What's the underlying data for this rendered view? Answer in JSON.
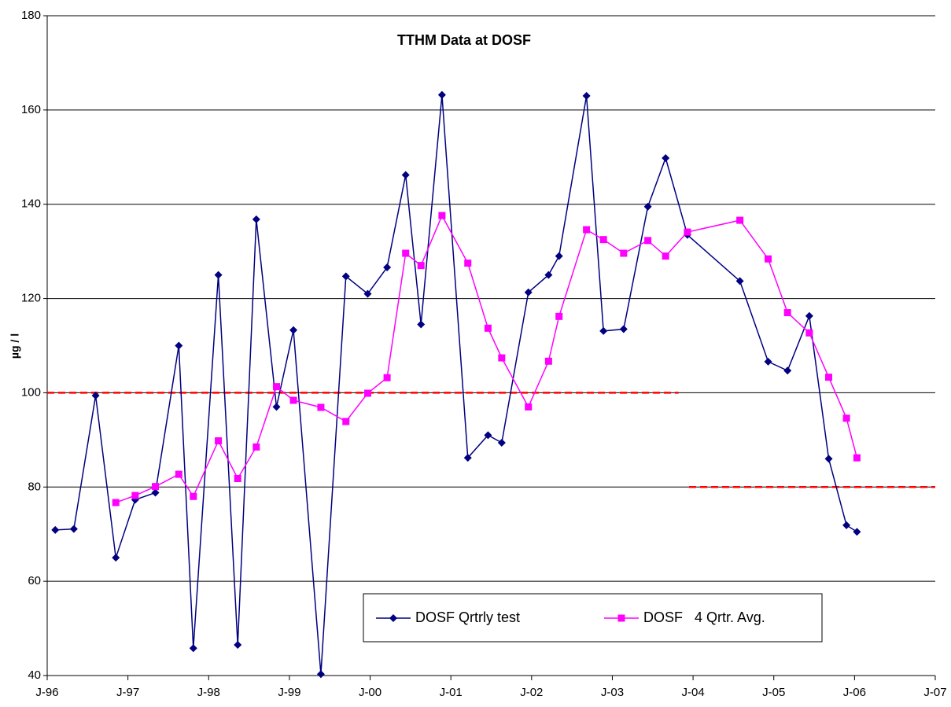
{
  "chart_data": {
    "type": "line",
    "title": "TTHM Data at DOSF",
    "y_label": "µg / l",
    "x": [
      1996.1,
      1996.33,
      1996.6,
      1996.85,
      1997.09,
      1997.34,
      1997.63,
      1997.81,
      1998.12,
      1998.36,
      1998.59,
      1998.84,
      1999.05,
      1999.39,
      1999.7,
      1999.97,
      2000.21,
      2000.44,
      2000.63,
      2000.89,
      2001.21,
      2001.46,
      2001.63,
      2001.96,
      2002.21,
      2002.34,
      2002.68,
      2002.89,
      2003.14,
      2003.44,
      2003.66,
      2003.93,
      2004.58,
      2004.93,
      2005.17,
      2005.44,
      2005.68,
      2005.9,
      2006.03
    ],
    "series": [
      {
        "name": "DOSF Qrtrly test",
        "color": "#000080",
        "marker": "diamond",
        "values": [
          70.9,
          71.1,
          99.4,
          65,
          77.3,
          78.8,
          110,
          45.8,
          125,
          46.5,
          136.8,
          97,
          113.3,
          40.3,
          124.7,
          121,
          126.6,
          146.2,
          114.5,
          163.2,
          86.2,
          91,
          89.4,
          121.3,
          125,
          129,
          163,
          113.1,
          113.5,
          139.5,
          149.8,
          133.5,
          123.7,
          106.6,
          104.7,
          116.3,
          86,
          71.9,
          70.5
        ]
      },
      {
        "name": "DOSF   4 Qrtr. Avg.",
        "color": "#ff00ff",
        "marker": "square",
        "values": [
          null,
          null,
          null,
          76.7,
          78.2,
          80.1,
          82.7,
          78,
          89.8,
          81.8,
          88.5,
          101.3,
          98.4,
          96.9,
          93.9,
          99.9,
          103.2,
          129.6,
          127,
          137.6,
          127.5,
          113.7,
          107.4,
          97,
          106.7,
          116.2,
          134.6,
          132.5,
          129.6,
          132.3,
          129,
          134.1,
          136.6,
          128.4,
          117,
          112.7,
          103.3,
          94.6,
          86.2
        ]
      }
    ],
    "reference_lines": [
      {
        "value": 100,
        "x_range": [
          1996,
          2003.82
        ],
        "color": "#ff0000"
      },
      {
        "value": 80,
        "x_range": [
          2003.95,
          2007
        ],
        "color": "#ff0000"
      }
    ],
    "xlim": [
      1996,
      2007
    ],
    "xticks": [
      {
        "value": 1996,
        "label": "J-96"
      },
      {
        "value": 1997,
        "label": "J-97"
      },
      {
        "value": 1998,
        "label": "J-98"
      },
      {
        "value": 1999,
        "label": "J-99"
      },
      {
        "value": 2000,
        "label": "J-00"
      },
      {
        "value": 2001,
        "label": "J-01"
      },
      {
        "value": 2002,
        "label": "J-02"
      },
      {
        "value": 2003,
        "label": "J-03"
      },
      {
        "value": 2004,
        "label": "J-04"
      },
      {
        "value": 2005,
        "label": "J-05"
      },
      {
        "value": 2006,
        "label": "J-06"
      },
      {
        "value": 2007,
        "label": "J-07"
      }
    ],
    "ylim": [
      40,
      180
    ],
    "yticks": [
      40,
      60,
      80,
      100,
      120,
      140,
      160,
      180
    ],
    "grid": true
  }
}
